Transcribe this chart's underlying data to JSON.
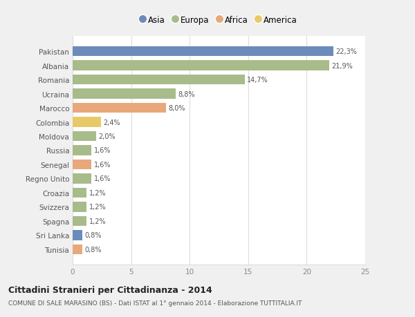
{
  "categories": [
    "Pakistan",
    "Albania",
    "Romania",
    "Ucraina",
    "Marocco",
    "Colombia",
    "Moldova",
    "Russia",
    "Senegal",
    "Regno Unito",
    "Croazia",
    "Svizzera",
    "Spagna",
    "Sri Lanka",
    "Tunisia"
  ],
  "values": [
    22.3,
    21.9,
    14.7,
    8.8,
    8.0,
    2.4,
    2.0,
    1.6,
    1.6,
    1.6,
    1.2,
    1.2,
    1.2,
    0.8,
    0.8
  ],
  "labels": [
    "22,3%",
    "21,9%",
    "14,7%",
    "8,8%",
    "8,0%",
    "2,4%",
    "2,0%",
    "1,6%",
    "1,6%",
    "1,6%",
    "1,2%",
    "1,2%",
    "1,2%",
    "0,8%",
    "0,8%"
  ],
  "colors": [
    "#6b8cba",
    "#a8bb8a",
    "#a8bb8a",
    "#a8bb8a",
    "#e8a87c",
    "#e8c96a",
    "#a8bb8a",
    "#a8bb8a",
    "#e8a87c",
    "#a8bb8a",
    "#a8bb8a",
    "#a8bb8a",
    "#a8bb8a",
    "#6b8cba",
    "#e8a87c"
  ],
  "legend_labels": [
    "Asia",
    "Europa",
    "Africa",
    "America"
  ],
  "legend_colors": [
    "#6b8cba",
    "#a8bb8a",
    "#e8a87c",
    "#e8c96a"
  ],
  "xlim": [
    0,
    25
  ],
  "xticks": [
    0,
    5,
    10,
    15,
    20,
    25
  ],
  "title": "Cittadini Stranieri per Cittadinanza - 2014",
  "subtitle": "COMUNE DI SALE MARASINO (BS) - Dati ISTAT al 1° gennaio 2014 - Elaborazione TUTTITALIA.IT",
  "fig_bg": "#f0f0f0",
  "plot_bg": "#ffffff",
  "grid_color": "#dddddd",
  "label_color": "#555555",
  "tick_color": "#888888"
}
